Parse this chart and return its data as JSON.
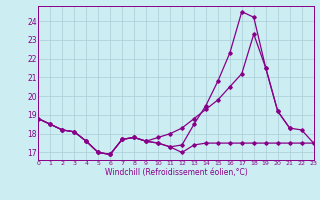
{
  "xlabel": "Windchill (Refroidissement éolien,°C)",
  "xlim": [
    0,
    23
  ],
  "ylim": [
    16.6,
    24.8
  ],
  "yticks": [
    17,
    18,
    19,
    20,
    21,
    22,
    23,
    24
  ],
  "xticks": [
    0,
    1,
    2,
    3,
    4,
    5,
    6,
    7,
    8,
    9,
    10,
    11,
    12,
    13,
    14,
    15,
    16,
    17,
    18,
    19,
    20,
    21,
    22,
    23
  ],
  "bg_color": "#cceef2",
  "grid_color": "#aaccd8",
  "line_color": "#880088",
  "series": [
    {
      "x": [
        0,
        1,
        2,
        3,
        4,
        5,
        6,
        7,
        8,
        9,
        10,
        11,
        12,
        13,
        14,
        15,
        16,
        17,
        18,
        19,
        20,
        21,
        22,
        23
      ],
      "y": [
        18.8,
        18.5,
        18.2,
        18.1,
        17.6,
        17.0,
        16.9,
        17.7,
        17.8,
        17.6,
        17.5,
        17.3,
        17.0,
        17.4,
        17.5,
        17.5,
        17.5,
        17.5,
        17.5,
        17.5,
        17.5,
        17.5,
        17.5,
        17.5
      ]
    },
    {
      "x": [
        0,
        1,
        2,
        3,
        4,
        5,
        6,
        7,
        8,
        9,
        10,
        11,
        12,
        13,
        14,
        15,
        16,
        17,
        18,
        19,
        20,
        21
      ],
      "y": [
        18.8,
        18.5,
        18.2,
        18.1,
        17.6,
        17.0,
        16.9,
        17.7,
        17.8,
        17.6,
        17.5,
        17.3,
        17.4,
        18.5,
        19.5,
        20.8,
        22.3,
        24.5,
        24.2,
        21.5,
        19.2,
        18.3
      ]
    },
    {
      "x": [
        0,
        1,
        2,
        3,
        4,
        5,
        6,
        7,
        8,
        9,
        10,
        11,
        12,
        13,
        14,
        15,
        16,
        17,
        18,
        19,
        20,
        21,
        22,
        23
      ],
      "y": [
        18.8,
        18.5,
        18.2,
        18.1,
        17.6,
        17.0,
        16.9,
        17.7,
        17.8,
        17.6,
        17.8,
        18.0,
        18.3,
        18.8,
        19.3,
        19.8,
        20.5,
        21.2,
        23.3,
        21.5,
        19.2,
        18.3,
        18.2,
        17.5
      ]
    }
  ]
}
